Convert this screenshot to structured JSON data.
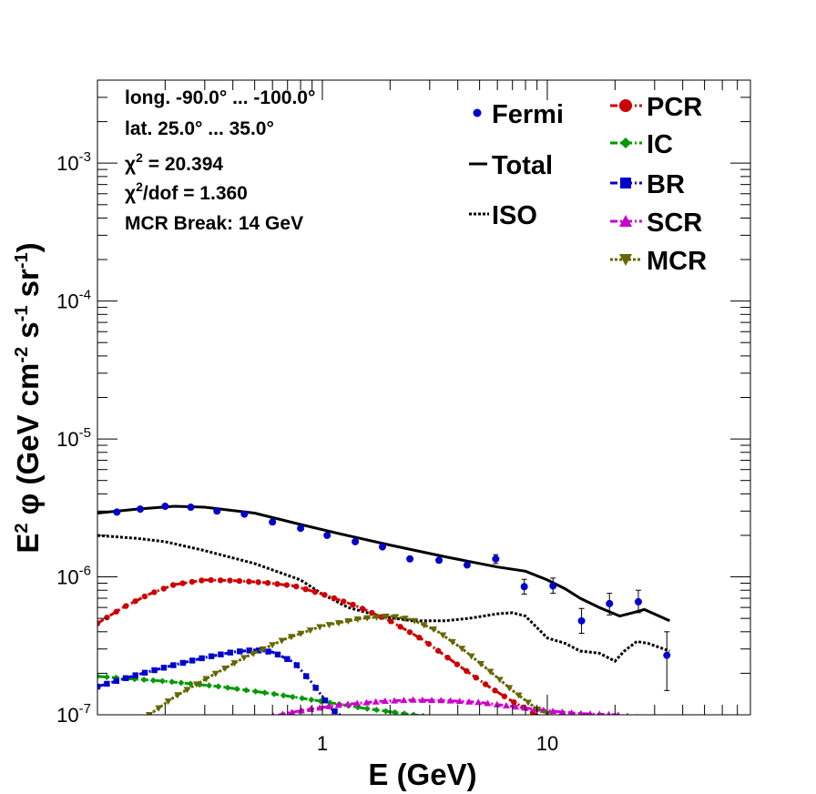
{
  "chart_data": {
    "type": "line",
    "xscale": "log",
    "yscale": "log",
    "xlim": [
      0.1,
      80
    ],
    "ylim": [
      1e-07,
      0.004
    ],
    "xlabel": "E (GeV)",
    "ylabel_parts": {
      "base": "E",
      "sup": "2",
      "rest": " φ (GeV cm",
      "sup2": "-2",
      "s": " s",
      "sup3": "-1",
      "sr": " sr",
      "sup4": "-1",
      "close": ")"
    },
    "x_ticks": [
      {
        "value": 1,
        "label": "1"
      },
      {
        "value": 10,
        "label": "10"
      }
    ],
    "y_ticks": [
      {
        "value": 1e-07,
        "base": "10",
        "exp": "-7"
      },
      {
        "value": 1e-06,
        "base": "10",
        "exp": "-6"
      },
      {
        "value": 1e-05,
        "base": "10",
        "exp": "-5"
      },
      {
        "value": 0.0001,
        "base": "10",
        "exp": "-4"
      },
      {
        "value": 0.001,
        "base": "10",
        "exp": "-3"
      }
    ],
    "annotations": [
      {
        "text": "long. -90.0° ... -100.0°"
      },
      {
        "text": "lat. 25.0° ... 35.0°"
      },
      {
        "pre": "χ",
        "sup": "2",
        "post": " = 20.394"
      },
      {
        "pre": "χ",
        "sup": "2",
        "post": "/dof = 1.360"
      },
      {
        "text": "MCR Break: 14 GeV"
      }
    ],
    "legend": {
      "placement": "top-right",
      "entries": [
        {
          "name": "Fermi",
          "color": "#0000cc",
          "marker": "dot"
        },
        {
          "name": "Total",
          "color": "#000000",
          "marker": "line"
        },
        {
          "name": "ISO",
          "color": "#000000",
          "marker": "dotted"
        },
        {
          "name": "PCR",
          "color": "#cc0000",
          "marker": "circle"
        },
        {
          "name": "IC",
          "color": "#009900",
          "marker": "diamond"
        },
        {
          "name": "BR",
          "color": "#0000cc",
          "marker": "square"
        },
        {
          "name": "SCR",
          "color": "#cc00cc",
          "marker": "triangle-up"
        },
        {
          "name": "MCR",
          "color": "#666600",
          "marker": "triangle-down"
        }
      ]
    },
    "fermi": [
      {
        "x": 0.122,
        "y": 2.95e-06
      },
      {
        "x": 0.155,
        "y": 3.1e-06
      },
      {
        "x": 0.2,
        "y": 3.25e-06
      },
      {
        "x": 0.26,
        "y": 3.2e-06
      },
      {
        "x": 0.34,
        "y": 3e-06
      },
      {
        "x": 0.45,
        "y": 2.85e-06
      },
      {
        "x": 0.6,
        "y": 2.5e-06
      },
      {
        "x": 0.8,
        "y": 2.25e-06
      },
      {
        "x": 1.05,
        "y": 2e-06
      },
      {
        "x": 1.4,
        "y": 1.8e-06
      },
      {
        "x": 1.85,
        "y": 1.65e-06
      },
      {
        "x": 2.45,
        "y": 1.35e-06
      },
      {
        "x": 3.3,
        "y": 1.32e-06
      },
      {
        "x": 4.4,
        "y": 1.22e-06
      },
      {
        "x": 5.9,
        "y": 1.35e-06,
        "err": [
          1.25e-06,
          1.45e-06
        ]
      },
      {
        "x": 7.9,
        "y": 8.5e-07,
        "err": [
          7.5e-07,
          9.6e-07
        ]
      },
      {
        "x": 10.6,
        "y": 8.6e-07,
        "err": [
          7.6e-07,
          9.8e-07
        ]
      },
      {
        "x": 14.2,
        "y": 4.8e-07,
        "err": [
          3.9e-07,
          5.9e-07
        ]
      },
      {
        "x": 18.9,
        "y": 6.4e-07,
        "err": [
          5.3e-07,
          7.6e-07
        ]
      },
      {
        "x": 25.4,
        "y": 6.6e-07,
        "err": [
          5.5e-07,
          8e-07
        ]
      },
      {
        "x": 34,
        "y": 2.7e-07,
        "err": [
          1.5e-07,
          4e-07
        ]
      }
    ],
    "series": [
      {
        "name": "Total",
        "color": "#000000",
        "style": "solid",
        "marker": "none",
        "x": [
          0.1,
          0.15,
          0.22,
          0.3,
          0.5,
          0.8,
          1.2,
          2,
          3.5,
          6,
          8,
          10,
          12,
          14,
          17,
          21,
          24,
          27,
          35
        ],
        "y": [
          2.9e-06,
          3.1e-06,
          3.25e-06,
          3.2e-06,
          2.9e-06,
          2.4e-06,
          2.05e-06,
          1.7e-06,
          1.4e-06,
          1.18e-06,
          1.1e-06,
          9.5e-07,
          8.2e-07,
          7e-07,
          6e-07,
          5.2e-07,
          5.5e-07,
          5.8e-07,
          4.8e-07
        ]
      },
      {
        "name": "ISO",
        "color": "#000000",
        "style": "dotted",
        "marker": "none",
        "x": [
          0.1,
          0.15,
          0.2,
          0.3,
          0.5,
          0.8,
          1.0,
          1.3,
          1.8,
          2.5,
          3.5,
          4.5,
          6,
          7,
          8,
          10,
          12,
          14,
          17,
          20,
          22,
          25,
          28,
          35
        ],
        "y": [
          2e-06,
          1.9e-06,
          1.8e-06,
          1.55e-06,
          1.25e-06,
          9.5e-07,
          7.5e-07,
          6e-07,
          5.2e-07,
          4.8e-07,
          4.8e-07,
          5e-07,
          5.4e-07,
          5.5e-07,
          5.2e-07,
          3.6e-07,
          3.3e-07,
          2.9e-07,
          2.8e-07,
          2.45e-07,
          2.9e-07,
          3.4e-07,
          3.3e-07,
          2.9e-07
        ]
      },
      {
        "name": "PCR",
        "color": "#cc0000",
        "style": "dashdot",
        "marker": "circle",
        "marker_every": 1,
        "x": [
          0.1,
          0.13,
          0.17,
          0.22,
          0.3,
          0.4,
          0.55,
          0.75,
          1.0,
          1.4,
          2.0,
          2.8,
          4.0,
          5.5,
          7.0,
          8.5,
          9.5
        ],
        "y": [
          4.6e-07,
          6e-07,
          7.5e-07,
          8.8e-07,
          9.5e-07,
          9.4e-07,
          9.1e-07,
          8.6e-07,
          7.5e-07,
          6.2e-07,
          4.8e-07,
          3.5e-07,
          2.3e-07,
          1.6e-07,
          1.25e-07,
          1.05e-07,
          9.5e-08
        ]
      },
      {
        "name": "IC",
        "color": "#009900",
        "style": "dashdot",
        "marker": "diamond",
        "marker_every": 1,
        "x": [
          0.1,
          0.2,
          0.35,
          0.6,
          1.0,
          1.5,
          2.2,
          2.8
        ],
        "y": [
          1.9e-07,
          1.75e-07,
          1.6e-07,
          1.42e-07,
          1.25e-07,
          1.12e-07,
          1.03e-07,
          9.8e-08
        ]
      },
      {
        "name": "BR",
        "color": "#0000cc",
        "style": "dashdot",
        "marker": "square",
        "marker_every": 1,
        "x": [
          0.1,
          0.15,
          0.22,
          0.3,
          0.4,
          0.5,
          0.6,
          0.75,
          0.9,
          1.1,
          1.25
        ],
        "y": [
          1.6e-07,
          1.95e-07,
          2.3e-07,
          2.6e-07,
          2.85e-07,
          2.95e-07,
          2.85e-07,
          2.4e-07,
          1.7e-07,
          1.1e-07,
          9.5e-08
        ]
      },
      {
        "name": "SCR",
        "color": "#cc00cc",
        "style": "dashdot",
        "marker": "triangle-up",
        "marker_every": 1,
        "x": [
          0.55,
          0.8,
          1.2,
          1.8,
          2.5,
          3.5,
          5,
          7,
          10,
          14,
          20,
          25
        ],
        "y": [
          9.5e-08,
          1.07e-07,
          1.18e-07,
          1.25e-07,
          1.28e-07,
          1.27e-07,
          1.23e-07,
          1.15e-07,
          1.07e-07,
          1.02e-07,
          1e-07,
          9.6e-08
        ]
      },
      {
        "name": "MCR",
        "color": "#666600",
        "style": "dashed",
        "marker": "triangle-down",
        "marker_every": 1,
        "x": [
          0.17,
          0.22,
          0.3,
          0.45,
          0.7,
          1.0,
          1.5,
          2.0,
          2.5,
          3.2,
          4.2,
          5.5,
          7,
          9,
          11
        ],
        "y": [
          1e-07,
          1.35e-07,
          1.8e-07,
          2.6e-07,
          3.6e-07,
          4.4e-07,
          5e-07,
          5.2e-07,
          4.9e-07,
          4.1e-07,
          3e-07,
          2.1e-07,
          1.5e-07,
          1.1e-07,
          9.5e-08
        ]
      }
    ]
  }
}
